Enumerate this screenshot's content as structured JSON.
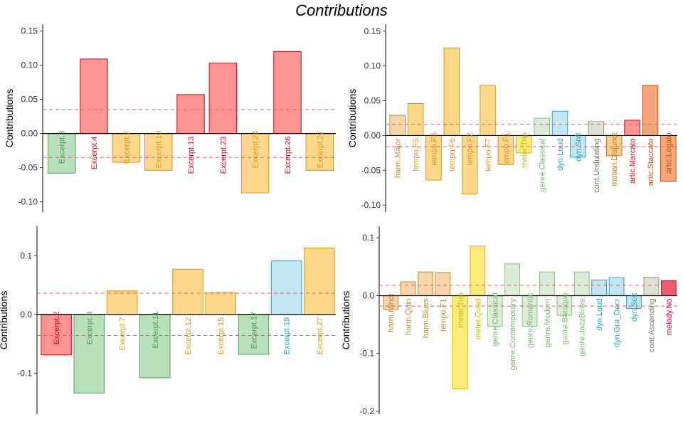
{
  "title": "Contributions",
  "chart_data": [
    {
      "type": "bar",
      "ylabel": "Contributions",
      "ylim": [
        -0.115,
        0.16
      ],
      "yticks": [
        -0.1,
        -0.05,
        0.0,
        0.05,
        0.1,
        0.15
      ],
      "ytick_labels": [
        "-0.10",
        "-0.05",
        "0.00",
        "0.05",
        "0.10",
        "0.15"
      ],
      "threshold": 0.035,
      "categories": [
        "Excerpt.3",
        "Excerpt.4",
        "Excerpt.7",
        "Excerpt.10",
        "Excerpt.13",
        "Excerpt.23",
        "Excerpt.24",
        "Excerpt.26",
        "Excerpt.27"
      ],
      "values": [
        -0.058,
        0.109,
        -0.042,
        -0.054,
        0.057,
        0.103,
        -0.087,
        0.12,
        -0.054
      ],
      "groups": [
        "green",
        "red",
        "orange",
        "orange",
        "red",
        "red",
        "orange",
        "red",
        "orange"
      ]
    },
    {
      "type": "bar",
      "ylabel": "Contributions",
      "ylim": [
        -0.11,
        0.16
      ],
      "yticks": [
        -0.1,
        -0.05,
        0.0,
        0.05,
        0.1,
        0.15
      ],
      "ytick_labels": [
        "-0.10",
        "-0.05",
        "0.00",
        "0.05",
        "0.10",
        "0.15"
      ],
      "threshold": 0.016,
      "categories": [
        "harm.Major",
        "tempo.F5",
        "tempo.F3",
        "tempo.F6",
        "tempo.F2",
        "tempo.F7",
        "tempo.F1",
        "meter.Trip",
        "genre.Classical",
        "dyn.Loud",
        "dyn.Soft",
        "cont.Undulating",
        "motion.Disjunct",
        "artic.Marcato",
        "artic.Staccato",
        "artic.Legato"
      ],
      "values": [
        0.029,
        0.046,
        -0.064,
        0.126,
        -0.084,
        0.072,
        -0.042,
        -0.025,
        0.025,
        0.035,
        -0.031,
        0.02,
        -0.029,
        0.022,
        0.072,
        -0.066
      ],
      "groups": [
        "peach",
        "orange",
        "orange",
        "orange",
        "orange",
        "orange",
        "orange",
        "yellow",
        "lgreen",
        "cyan",
        "cyan",
        "gray",
        "darkorange",
        "red",
        "salmon",
        "salmon"
      ]
    },
    {
      "type": "bar",
      "ylabel": "Contributions",
      "ylim": [
        -0.17,
        0.15
      ],
      "yticks": [
        -0.1,
        0.0,
        0.1
      ],
      "ytick_labels": [
        "-0.1",
        "0.0",
        "0.1"
      ],
      "threshold": 0.036,
      "categories": [
        "Excerpt.2",
        "Excerpt.3",
        "Excerpt.7",
        "Excerpt.11",
        "Excerpt.12",
        "Excerpt.15",
        "Excerpt.17",
        "Excerpt.19",
        "Excerpt.27"
      ],
      "values": [
        -0.069,
        -0.134,
        0.04,
        -0.108,
        0.077,
        0.037,
        -0.068,
        0.091,
        0.113
      ],
      "groups": [
        "red",
        "green",
        "orange",
        "green",
        "orange",
        "orange",
        "green",
        "cyan",
        "orange"
      ]
    },
    {
      "type": "bar",
      "ylabel": "Contributions",
      "ylim": [
        -0.205,
        0.12
      ],
      "yticks": [
        -0.2,
        -0.1,
        0.0,
        0.1
      ],
      "ytick_labels": [
        "-0.2",
        "-0.1",
        "0.0",
        "0.1"
      ],
      "threshold": 0.018,
      "categories": [
        "harm.Minor",
        "harm.Quin",
        "harm.Blues",
        "tempo.F1",
        "meter.Trip",
        "meter.Quad",
        "genre.Classical",
        "genre.Contemporary",
        "genre.Romantic",
        "genre.Modern",
        "genre.Baroque",
        "genre.JazzBlues",
        "dyn.Loud",
        "dyn.Gra_Decr",
        "dyn.Soft",
        "cont.Ascending",
        "melody.No"
      ],
      "values": [
        -0.024,
        0.024,
        0.041,
        0.04,
        -0.161,
        0.086,
        -0.053,
        0.055,
        -0.053,
        0.041,
        -0.034,
        0.041,
        0.027,
        0.031,
        -0.022,
        0.032,
        0.026
      ],
      "groups": [
        "peach",
        "peach",
        "peach",
        "peach",
        "yellow",
        "yellow",
        "lgreen",
        "lgreen",
        "lgreen",
        "lgreen",
        "lgreen",
        "lgreen",
        "cyan",
        "cyan",
        "cyan",
        "gray",
        "crimson"
      ]
    }
  ],
  "colors": {
    "green": {
      "fill": "#b9e0bb",
      "stroke": "#5a9a5e",
      "text": "#4f9a55"
    },
    "red": {
      "fill": "#ff9494",
      "stroke": "#c8101e",
      "text": "#c8101e"
    },
    "orange": {
      "fill": "#fdd78a",
      "stroke": "#d79a20",
      "text": "#d79a20"
    },
    "peach": {
      "fill": "#f6d5a8",
      "stroke": "#c08a3a",
      "text": "#c08a3a"
    },
    "yellow": {
      "fill": "#fbeb7a",
      "stroke": "#d4b800",
      "text": "#d4b800"
    },
    "lgreen": {
      "fill": "#dcecd6",
      "stroke": "#8cbf84",
      "text": "#7fb477"
    },
    "cyan": {
      "fill": "#c4e6f2",
      "stroke": "#2aa6c8",
      "text": "#2aa6c8"
    },
    "gray": {
      "fill": "#dde1d2",
      "stroke": "#8c9a80",
      "text": "#6f7d62"
    },
    "darkorange": {
      "fill": "#f5cf90",
      "stroke": "#c07818",
      "text": "#c07818"
    },
    "salmon": {
      "fill": "#f5a77a",
      "stroke": "#c45416",
      "text": "#c45416"
    },
    "crimson": {
      "fill": "#f25a6e",
      "stroke": "#c01030",
      "text": "#c01030"
    },
    "threshold": "#e36363"
  }
}
